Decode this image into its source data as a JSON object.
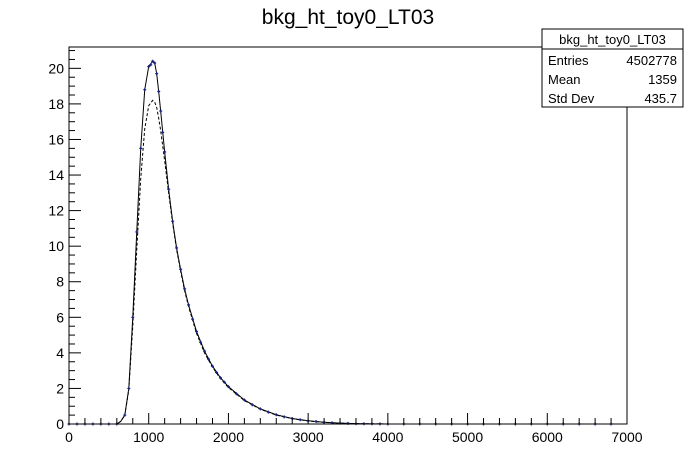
{
  "chart_data": {
    "type": "line",
    "title": "bkg_ht_toy0_LT03",
    "xlabel": "",
    "ylabel": "",
    "xlim": [
      0,
      7000
    ],
    "ylim": [
      0,
      21.2
    ],
    "grid": false,
    "x_ticks": [
      0,
      1000,
      2000,
      3000,
      4000,
      5000,
      6000,
      7000
    ],
    "x_tick_labels": [
      "0",
      "1000",
      "2000",
      "3000",
      "4000",
      "5000",
      "6000",
      "7000"
    ],
    "y_ticks": [
      0,
      2,
      4,
      6,
      8,
      10,
      12,
      14,
      16,
      18,
      20
    ],
    "y_tick_labels": [
      "0",
      "2",
      "4",
      "6",
      "8",
      "10",
      "12",
      "14",
      "16",
      "18",
      "20"
    ],
    "stats_box": {
      "title": "bkg_ht_toy0_LT03",
      "rows": [
        {
          "label": "Entries",
          "value": "4502778"
        },
        {
          "label": "Mean",
          "value": "1359"
        },
        {
          "label": "Std Dev",
          "value": "435.7"
        }
      ]
    },
    "series": [
      {
        "style": "solid",
        "color": "#000000",
        "x": [
          0,
          600,
          650,
          700,
          750,
          800,
          850,
          900,
          950,
          1000,
          1050,
          1075,
          1100,
          1125,
          1150,
          1200,
          1250,
          1300,
          1350,
          1400,
          1450,
          1500,
          1600,
          1700,
          1800,
          1900,
          2000,
          2200,
          2400,
          2600,
          2800,
          3000,
          3200,
          3400,
          3600,
          3800,
          4000,
          7000
        ],
        "values": [
          0,
          0,
          0.15,
          0.5,
          2.0,
          6.0,
          10.8,
          15.5,
          18.8,
          20.1,
          20.4,
          20.3,
          19.7,
          18.7,
          17.6,
          15.3,
          13.2,
          11.4,
          9.9,
          8.7,
          7.6,
          6.7,
          5.2,
          4.1,
          3.25,
          2.6,
          2.1,
          1.35,
          0.85,
          0.52,
          0.31,
          0.18,
          0.1,
          0.05,
          0.02,
          0.01,
          0.0,
          0
        ]
      },
      {
        "style": "dashed",
        "color": "#000000",
        "x": [
          0,
          600,
          650,
          700,
          750,
          800,
          850,
          900,
          950,
          1000,
          1050,
          1075,
          1100,
          1125,
          1150,
          1200,
          1250,
          1300,
          1350,
          1400,
          1450,
          1500,
          1600,
          1700,
          1800,
          1900,
          2000,
          2200,
          2400,
          2600,
          2800,
          3000,
          3200,
          3400,
          3600,
          3800,
          4000,
          7000
        ],
        "values": [
          0,
          0,
          0.15,
          0.5,
          1.9,
          5.5,
          9.8,
          13.8,
          16.6,
          17.9,
          18.2,
          18.1,
          17.8,
          17.2,
          16.5,
          14.8,
          13.0,
          11.3,
          9.8,
          8.6,
          7.5,
          6.6,
          5.1,
          4.0,
          3.2,
          2.55,
          2.05,
          1.32,
          0.83,
          0.5,
          0.3,
          0.17,
          0.09,
          0.05,
          0.02,
          0.01,
          0.0,
          0
        ]
      },
      {
        "style": "markers",
        "color": "#1a237e",
        "x": [
          0,
          100,
          200,
          300,
          400,
          500,
          600,
          700,
          750,
          800,
          850,
          900,
          950,
          1000,
          1025,
          1050,
          1075,
          1100,
          1125,
          1150,
          1175,
          1200,
          1250,
          1300,
          1350,
          1400,
          1450,
          1500,
          1550,
          1600,
          1650,
          1700,
          1750,
          1800,
          1850,
          1900,
          1950,
          2000,
          2100,
          2200,
          2300,
          2400,
          2500,
          2600,
          2700,
          2800,
          2900,
          3000,
          3100,
          3200,
          3300,
          3400,
          3500,
          3600,
          3700,
          3800,
          3900,
          4000,
          4200,
          4400,
          4600,
          4800,
          5000,
          5200,
          5400,
          5600,
          5800,
          6000,
          6200,
          6400,
          6600,
          6800
        ],
        "values": [
          0,
          0,
          0,
          0,
          0,
          0,
          0,
          0.5,
          2.0,
          6.0,
          10.8,
          15.5,
          18.8,
          20.1,
          20.2,
          20.4,
          20.3,
          19.7,
          18.7,
          17.6,
          16.4,
          15.3,
          13.2,
          11.4,
          9.9,
          8.7,
          7.6,
          6.7,
          5.9,
          5.2,
          4.6,
          4.1,
          3.65,
          3.25,
          2.9,
          2.6,
          2.35,
          2.1,
          1.7,
          1.35,
          1.08,
          0.85,
          0.67,
          0.52,
          0.4,
          0.31,
          0.24,
          0.18,
          0.14,
          0.1,
          0.07,
          0.05,
          0.035,
          0.02,
          0.015,
          0.01,
          0.005,
          0.0,
          0,
          0,
          0,
          0,
          0,
          0,
          0,
          0,
          0,
          0,
          0,
          0,
          0,
          0
        ]
      }
    ]
  }
}
